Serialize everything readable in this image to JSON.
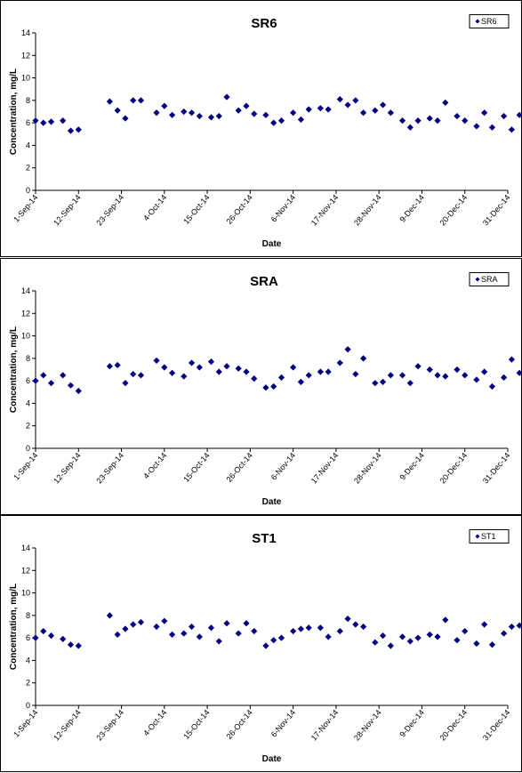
{
  "chart_data": [
    {
      "type": "scatter",
      "title": "SR6",
      "xlabel": "Date",
      "ylabel": "Concentration, mg/L",
      "ylim": [
        0,
        14
      ],
      "yticks": [
        0,
        2,
        4,
        6,
        8,
        10,
        12,
        14
      ],
      "xlim": [
        "1-Sep-14",
        "31-Dec-14"
      ],
      "xticks": [
        "1-Sep-14",
        "12-Sep-14",
        "23-Sep-14",
        "4-Oct-14",
        "15-Oct-14",
        "26-Oct-14",
        "6-Nov-14",
        "17-Nov-14",
        "28-Nov-14",
        "9-Dec-14",
        "20-Dec-14",
        "31-Dec-14"
      ],
      "legend_position": "top-right",
      "color": "#000080",
      "series": [
        {
          "name": "SR6",
          "points": [
            [
              "1-Sep-14",
              6.2
            ],
            [
              "3-Sep-14",
              6.0
            ],
            [
              "5-Sep-14",
              6.1
            ],
            [
              "8-Sep-14",
              6.2
            ],
            [
              "10-Sep-14",
              5.3
            ],
            [
              "12-Sep-14",
              5.4
            ],
            [
              "20-Sep-14",
              7.9
            ],
            [
              "22-Sep-14",
              7.1
            ],
            [
              "24-Sep-14",
              6.4
            ],
            [
              "26-Sep-14",
              8.0
            ],
            [
              "28-Sep-14",
              8.0
            ],
            [
              "2-Oct-14",
              6.9
            ],
            [
              "4-Oct-14",
              7.5
            ],
            [
              "6-Oct-14",
              6.7
            ],
            [
              "9-Oct-14",
              7.0
            ],
            [
              "11-Oct-14",
              6.9
            ],
            [
              "13-Oct-14",
              6.6
            ],
            [
              "16-Oct-14",
              6.5
            ],
            [
              "18-Oct-14",
              6.6
            ],
            [
              "20-Oct-14",
              8.3
            ],
            [
              "23-Oct-14",
              7.1
            ],
            [
              "25-Oct-14",
              7.5
            ],
            [
              "27-Oct-14",
              6.8
            ],
            [
              "30-Oct-14",
              6.7
            ],
            [
              "1-Nov-14",
              6.0
            ],
            [
              "3-Nov-14",
              6.2
            ],
            [
              "6-Nov-14",
              6.9
            ],
            [
              "8-Nov-14",
              6.3
            ],
            [
              "10-Nov-14",
              7.2
            ],
            [
              "13-Nov-14",
              7.3
            ],
            [
              "15-Nov-14",
              7.2
            ],
            [
              "18-Nov-14",
              8.1
            ],
            [
              "20-Nov-14",
              7.6
            ],
            [
              "22-Nov-14",
              8.0
            ],
            [
              "24-Nov-14",
              6.9
            ],
            [
              "27-Nov-14",
              7.1
            ],
            [
              "29-Nov-14",
              7.6
            ],
            [
              "1-Dec-14",
              6.9
            ],
            [
              "4-Dec-14",
              6.2
            ],
            [
              "6-Dec-14",
              5.6
            ],
            [
              "8-Dec-14",
              6.2
            ],
            [
              "11-Dec-14",
              6.4
            ],
            [
              "13-Dec-14",
              6.2
            ],
            [
              "15-Dec-14",
              7.8
            ],
            [
              "18-Dec-14",
              6.6
            ],
            [
              "20-Dec-14",
              6.2
            ],
            [
              "23-Dec-14",
              5.7
            ],
            [
              "25-Dec-14",
              6.9
            ],
            [
              "27-Dec-14",
              5.6
            ],
            [
              "30-Dec-14",
              6.6
            ],
            [
              "1-Jan-15",
              5.4
            ],
            [
              "3-Jan-15",
              6.7
            ]
          ]
        }
      ]
    },
    {
      "type": "scatter",
      "title": "SRA",
      "xlabel": "Date",
      "ylabel": "Concentration, mg/L",
      "ylim": [
        0,
        14
      ],
      "yticks": [
        0,
        2,
        4,
        6,
        8,
        10,
        12,
        14
      ],
      "xlim": [
        "1-Sep-14",
        "31-Dec-14"
      ],
      "xticks": [
        "1-Sep-14",
        "12-Sep-14",
        "23-Sep-14",
        "4-Oct-14",
        "15-Oct-14",
        "26-Oct-14",
        "6-Nov-14",
        "17-Nov-14",
        "28-Nov-14",
        "9-Dec-14",
        "20-Dec-14",
        "31-Dec-14"
      ],
      "legend_position": "top-right",
      "color": "#000080",
      "series": [
        {
          "name": "SRA",
          "points": [
            [
              "1-Sep-14",
              6.0
            ],
            [
              "3-Sep-14",
              6.5
            ],
            [
              "5-Sep-14",
              5.8
            ],
            [
              "8-Sep-14",
              6.5
            ],
            [
              "10-Sep-14",
              5.6
            ],
            [
              "12-Sep-14",
              5.1
            ],
            [
              "20-Sep-14",
              7.3
            ],
            [
              "22-Sep-14",
              7.4
            ],
            [
              "24-Sep-14",
              5.8
            ],
            [
              "26-Sep-14",
              6.6
            ],
            [
              "28-Sep-14",
              6.5
            ],
            [
              "2-Oct-14",
              7.8
            ],
            [
              "4-Oct-14",
              7.2
            ],
            [
              "6-Oct-14",
              6.7
            ],
            [
              "9-Oct-14",
              6.4
            ],
            [
              "11-Oct-14",
              7.6
            ],
            [
              "13-Oct-14",
              7.2
            ],
            [
              "16-Oct-14",
              7.7
            ],
            [
              "18-Oct-14",
              6.8
            ],
            [
              "20-Oct-14",
              7.3
            ],
            [
              "23-Oct-14",
              7.1
            ],
            [
              "25-Oct-14",
              6.8
            ],
            [
              "27-Oct-14",
              6.2
            ],
            [
              "30-Oct-14",
              5.4
            ],
            [
              "1-Nov-14",
              5.5
            ],
            [
              "3-Nov-14",
              6.3
            ],
            [
              "6-Nov-14",
              7.2
            ],
            [
              "8-Nov-14",
              5.9
            ],
            [
              "10-Nov-14",
              6.5
            ],
            [
              "13-Nov-14",
              6.8
            ],
            [
              "15-Nov-14",
              6.8
            ],
            [
              "18-Nov-14",
              7.6
            ],
            [
              "20-Nov-14",
              8.8
            ],
            [
              "22-Nov-14",
              6.6
            ],
            [
              "24-Nov-14",
              8.0
            ],
            [
              "27-Nov-14",
              5.8
            ],
            [
              "29-Nov-14",
              5.9
            ],
            [
              "1-Dec-14",
              6.5
            ],
            [
              "4-Dec-14",
              6.5
            ],
            [
              "6-Dec-14",
              5.8
            ],
            [
              "8-Dec-14",
              7.3
            ],
            [
              "11-Dec-14",
              7.0
            ],
            [
              "13-Dec-14",
              6.5
            ],
            [
              "15-Dec-14",
              6.4
            ],
            [
              "18-Dec-14",
              7.0
            ],
            [
              "20-Dec-14",
              6.5
            ],
            [
              "23-Dec-14",
              6.1
            ],
            [
              "25-Dec-14",
              6.8
            ],
            [
              "27-Dec-14",
              5.5
            ],
            [
              "30-Dec-14",
              6.3
            ],
            [
              "1-Jan-15",
              7.9
            ],
            [
              "3-Jan-15",
              6.7
            ]
          ]
        }
      ]
    },
    {
      "type": "scatter",
      "title": "ST1",
      "xlabel": "Date",
      "ylabel": "Concentration, mg/L",
      "ylim": [
        0,
        14
      ],
      "yticks": [
        0,
        2,
        4,
        6,
        8,
        10,
        12,
        14
      ],
      "xlim": [
        "1-Sep-14",
        "31-Dec-14"
      ],
      "xticks": [
        "1-Sep-14",
        "12-Sep-14",
        "23-Sep-14",
        "4-Oct-14",
        "15-Oct-14",
        "26-Oct-14",
        "6-Nov-14",
        "17-Nov-14",
        "28-Nov-14",
        "9-Dec-14",
        "20-Dec-14",
        "31-Dec-14"
      ],
      "legend_position": "top-right",
      "color": "#000080",
      "series": [
        {
          "name": "ST1",
          "points": [
            [
              "1-Sep-14",
              6.0
            ],
            [
              "3-Sep-14",
              6.6
            ],
            [
              "5-Sep-14",
              6.2
            ],
            [
              "8-Sep-14",
              5.9
            ],
            [
              "10-Sep-14",
              5.4
            ],
            [
              "12-Sep-14",
              5.3
            ],
            [
              "20-Sep-14",
              8.0
            ],
            [
              "22-Sep-14",
              6.3
            ],
            [
              "24-Sep-14",
              6.8
            ],
            [
              "26-Sep-14",
              7.2
            ],
            [
              "28-Sep-14",
              7.4
            ],
            [
              "2-Oct-14",
              7.0
            ],
            [
              "4-Oct-14",
              7.5
            ],
            [
              "6-Oct-14",
              6.3
            ],
            [
              "9-Oct-14",
              6.4
            ],
            [
              "11-Oct-14",
              7.0
            ],
            [
              "13-Oct-14",
              6.1
            ],
            [
              "16-Oct-14",
              6.9
            ],
            [
              "18-Oct-14",
              5.7
            ],
            [
              "20-Oct-14",
              7.3
            ],
            [
              "23-Oct-14",
              6.4
            ],
            [
              "25-Oct-14",
              7.3
            ],
            [
              "27-Oct-14",
              6.6
            ],
            [
              "30-Oct-14",
              5.3
            ],
            [
              "1-Nov-14",
              5.8
            ],
            [
              "3-Nov-14",
              6.0
            ],
            [
              "6-Nov-14",
              6.6
            ],
            [
              "8-Nov-14",
              6.8
            ],
            [
              "10-Nov-14",
              6.9
            ],
            [
              "13-Nov-14",
              6.9
            ],
            [
              "15-Nov-14",
              6.1
            ],
            [
              "18-Nov-14",
              6.6
            ],
            [
              "20-Nov-14",
              7.7
            ],
            [
              "22-Nov-14",
              7.2
            ],
            [
              "24-Nov-14",
              7.0
            ],
            [
              "27-Nov-14",
              5.6
            ],
            [
              "29-Nov-14",
              6.2
            ],
            [
              "1-Dec-14",
              5.3
            ],
            [
              "4-Dec-14",
              6.1
            ],
            [
              "6-Dec-14",
              5.7
            ],
            [
              "8-Dec-14",
              6.0
            ],
            [
              "11-Dec-14",
              6.3
            ],
            [
              "13-Dec-14",
              6.1
            ],
            [
              "15-Dec-14",
              7.6
            ],
            [
              "18-Dec-14",
              5.8
            ],
            [
              "20-Dec-14",
              6.6
            ],
            [
              "23-Dec-14",
              5.5
            ],
            [
              "25-Dec-14",
              7.2
            ],
            [
              "27-Dec-14",
              5.4
            ],
            [
              "30-Dec-14",
              6.4
            ],
            [
              "1-Jan-15",
              7.0
            ],
            [
              "3-Jan-15",
              7.1
            ]
          ]
        }
      ]
    }
  ]
}
